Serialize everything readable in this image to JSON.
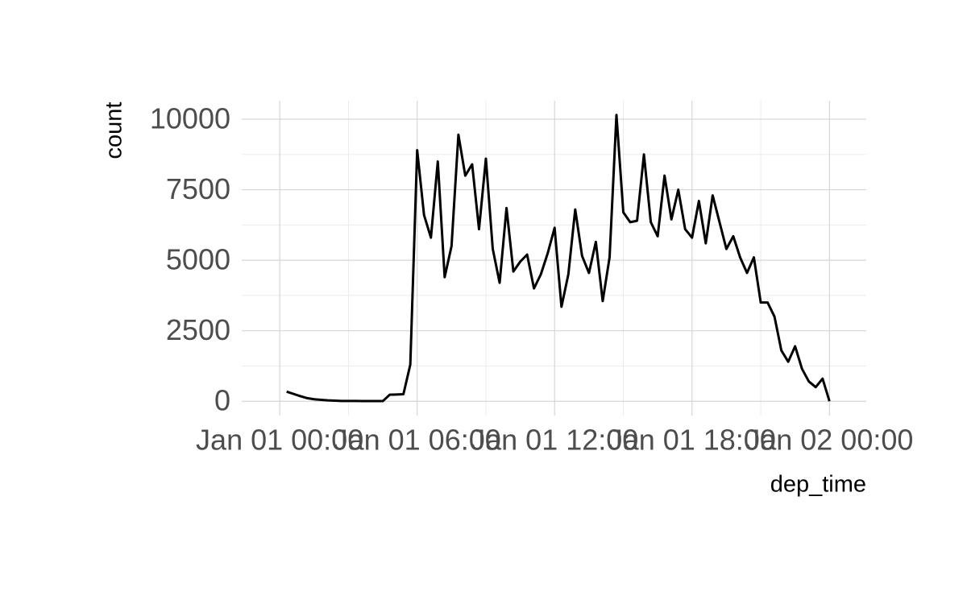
{
  "chart_data": {
    "type": "line",
    "x_label": "dep_time",
    "y_label": "count",
    "x": [
      "Jan 01 00:18",
      "Jan 01 00:36",
      "Jan 01 00:54",
      "Jan 01 01:12",
      "Jan 01 01:30",
      "Jan 01 01:48",
      "Jan 01 02:06",
      "Jan 01 02:24",
      "Jan 01 02:42",
      "Jan 01 03:00",
      "Jan 01 03:18",
      "Jan 01 03:36",
      "Jan 01 03:54",
      "Jan 01 04:12",
      "Jan 01 04:30",
      "Jan 01 04:48",
      "Jan 01 05:06",
      "Jan 01 05:24",
      "Jan 01 05:42",
      "Jan 01 06:00",
      "Jan 01 06:18",
      "Jan 01 06:36",
      "Jan 01 06:54",
      "Jan 01 07:12",
      "Jan 01 07:30",
      "Jan 01 07:48",
      "Jan 01 08:06",
      "Jan 01 08:24",
      "Jan 01 08:42",
      "Jan 01 09:00",
      "Jan 01 09:18",
      "Jan 01 09:36",
      "Jan 01 09:54",
      "Jan 01 10:12",
      "Jan 01 10:30",
      "Jan 01 10:48",
      "Jan 01 11:06",
      "Jan 01 11:24",
      "Jan 01 11:42",
      "Jan 01 12:00",
      "Jan 01 12:18",
      "Jan 01 12:36",
      "Jan 01 12:54",
      "Jan 01 13:12",
      "Jan 01 13:30",
      "Jan 01 13:48",
      "Jan 01 14:06",
      "Jan 01 14:24",
      "Jan 01 14:42",
      "Jan 01 15:00",
      "Jan 01 15:18",
      "Jan 01 15:36",
      "Jan 01 15:54",
      "Jan 01 16:12",
      "Jan 01 16:30",
      "Jan 01 16:48",
      "Jan 01 17:06",
      "Jan 01 17:24",
      "Jan 01 17:42",
      "Jan 01 18:00",
      "Jan 01 18:18",
      "Jan 01 18:36",
      "Jan 01 18:54",
      "Jan 01 19:12",
      "Jan 01 19:30",
      "Jan 01 19:48",
      "Jan 01 20:06",
      "Jan 01 20:24",
      "Jan 01 20:42",
      "Jan 01 21:00",
      "Jan 01 21:18",
      "Jan 01 21:36",
      "Jan 01 21:54",
      "Jan 01 22:12",
      "Jan 01 22:30",
      "Jan 01 22:48",
      "Jan 01 23:06",
      "Jan 01 23:24",
      "Jan 01 23:42",
      "Jan 02 00:00"
    ],
    "series": [
      {
        "color": "#000000",
        "values": [
          340,
          260,
          180,
          110,
          70,
          50,
          30,
          20,
          10,
          10,
          10,
          5,
          5,
          5,
          5,
          230,
          240,
          250,
          1300,
          8900,
          6600,
          5800,
          8500,
          4400,
          5500,
          9450,
          8000,
          8400,
          6100,
          8600,
          5400,
          4200,
          6850,
          4600,
          4950,
          5200,
          4000,
          4500,
          5250,
          6150,
          3350,
          4500,
          6800,
          5150,
          4550,
          5650,
          3550,
          5100,
          10150,
          6700,
          6350,
          6400,
          8750,
          6350,
          5850,
          8000,
          6450,
          7500,
          6100,
          5800,
          7100,
          5600,
          7300,
          6350,
          5400,
          5850,
          5100,
          4550,
          5100,
          3500,
          3500,
          3000,
          1800,
          1400,
          1950,
          1150,
          700,
          500,
          800,
          0
        ]
      }
    ],
    "xlim": [
      "Jan 01 00:18",
      "Jan 02 00:00"
    ],
    "xticks": [
      "Jan 01 00:00",
      "Jan 01 06:00",
      "Jan 01 12:00",
      "Jan 01 18:00",
      "Jan 02 00:00"
    ],
    "ylim": [
      0,
      10150
    ],
    "yticks": [
      0,
      2500,
      5000,
      7500,
      10000
    ],
    "grid": true,
    "minor_grid": true
  }
}
